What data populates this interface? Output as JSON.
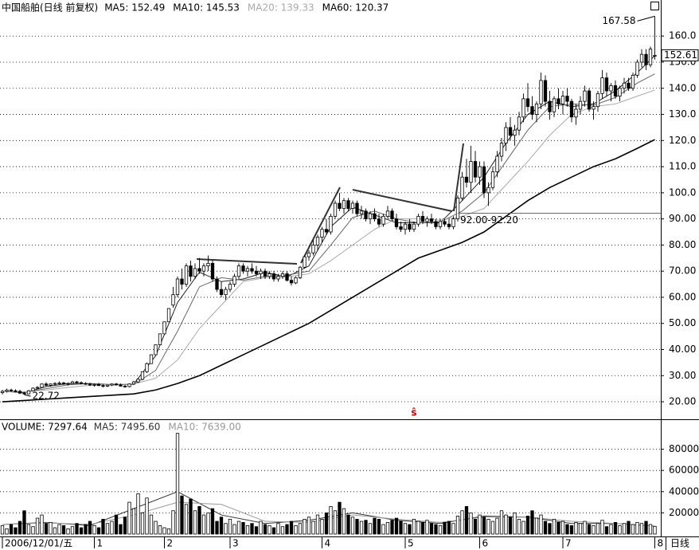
{
  "chart_data": {
    "type": "candlestick",
    "title": "中国船舶(日线 前复权)",
    "ylim": [
      13.6,
      173.8
    ],
    "yticks": [
      {
        "value": 20,
        "label": "20.00"
      },
      {
        "value": 30,
        "label": "30.00"
      },
      {
        "value": 40,
        "label": "40.00"
      },
      {
        "value": 50,
        "label": "50.00"
      },
      {
        "value": 60,
        "label": "60.00"
      },
      {
        "value": 70,
        "label": "70.00"
      },
      {
        "value": 80,
        "label": "80.00"
      },
      {
        "value": 90,
        "label": "90.00"
      },
      {
        "value": 100,
        "label": "100.0"
      },
      {
        "value": 110,
        "label": "110.0"
      },
      {
        "value": 120,
        "label": "120.0"
      },
      {
        "value": 130,
        "label": "130.0"
      },
      {
        "value": 140,
        "label": "140.0"
      },
      {
        "value": 150,
        "label": "150.0"
      },
      {
        "value": 160,
        "label": "160.0"
      }
    ],
    "grid": true,
    "candles": [
      [
        23.5,
        24.5,
        22.8,
        24
      ],
      [
        24,
        25,
        23.5,
        24.5
      ],
      [
        24.5,
        25,
        23.8,
        24.2
      ],
      [
        24.2,
        24.8,
        23.5,
        24
      ],
      [
        24,
        24.6,
        23,
        23.3
      ],
      [
        23.3,
        23.8,
        22.72,
        23
      ],
      [
        23,
        24.5,
        22.9,
        24.2
      ],
      [
        24.2,
        25.5,
        24,
        25.2
      ],
      [
        25.2,
        26,
        24.8,
        25.5
      ],
      [
        25.5,
        27,
        25.3,
        26.8
      ],
      [
        26.8,
        27.5,
        26,
        26.3
      ],
      [
        26.3,
        27,
        25.8,
        26.8
      ],
      [
        26.8,
        27.5,
        26.4,
        27
      ],
      [
        27,
        27.8,
        26.6,
        27.2
      ],
      [
        27.2,
        27.6,
        26.5,
        26.8
      ],
      [
        26.8,
        27.4,
        26.2,
        27
      ],
      [
        27,
        28,
        26.8,
        27.6
      ],
      [
        27.6,
        28,
        27,
        27.3
      ],
      [
        27.3,
        27.8,
        26.6,
        27
      ],
      [
        27,
        27.5,
        26.5,
        26.8
      ],
      [
        26.8,
        27.3,
        26,
        26.4
      ],
      [
        26.4,
        27,
        25.8,
        26.6
      ],
      [
        26.6,
        27.2,
        26,
        26.2
      ],
      [
        26.2,
        26.8,
        25.5,
        26
      ],
      [
        26,
        26.6,
        25.6,
        26.4
      ],
      [
        26.4,
        27,
        26,
        26.8
      ],
      [
        26.8,
        27.2,
        26.2,
        26.5
      ],
      [
        26.5,
        27,
        25.8,
        26
      ],
      [
        26,
        26.5,
        25.4,
        25.8
      ],
      [
        25.8,
        27,
        25.5,
        26.8
      ],
      [
        26.8,
        28,
        26.5,
        27.6
      ],
      [
        27.6,
        29,
        27.2,
        28.6
      ],
      [
        28.6,
        31.5,
        28.2,
        31.5
      ],
      [
        31.5,
        35,
        31,
        34.6
      ],
      [
        34.6,
        38,
        34.6,
        38
      ],
      [
        38,
        41.8,
        38,
        41.8
      ],
      [
        41.8,
        46,
        41.8,
        46
      ],
      [
        46,
        50.6,
        46,
        50.6
      ],
      [
        50.6,
        55.7,
        50.6,
        55.7
      ],
      [
        57,
        64,
        56,
        61
      ],
      [
        61,
        68,
        60,
        67
      ],
      [
        67,
        71,
        63,
        65
      ],
      [
        65,
        73,
        64,
        72
      ],
      [
        72,
        74,
        66,
        68
      ],
      [
        68,
        73,
        67,
        71
      ],
      [
        71,
        75,
        69,
        70
      ],
      [
        70,
        73,
        68,
        72
      ],
      [
        72,
        76,
        70,
        73
      ],
      [
        73,
        74,
        66,
        67
      ],
      [
        67,
        68,
        62,
        63
      ],
      [
        63,
        66,
        60,
        61
      ],
      [
        61,
        64,
        59,
        63
      ],
      [
        63,
        66,
        62,
        65
      ],
      [
        65,
        69,
        64,
        68
      ],
      [
        68,
        73,
        67,
        72
      ],
      [
        72,
        73,
        69,
        70
      ],
      [
        70,
        72,
        68,
        71
      ],
      [
        71,
        73,
        69,
        70
      ],
      [
        70,
        72,
        68,
        69
      ],
      [
        69,
        71,
        67,
        70
      ],
      [
        70,
        71,
        67,
        68
      ],
      [
        68,
        70,
        67,
        69
      ],
      [
        69,
        70,
        66,
        67
      ],
      [
        67,
        69,
        66,
        68
      ],
      [
        68,
        70,
        67,
        69
      ],
      [
        69,
        70,
        66,
        66.5
      ],
      [
        66.5,
        68,
        64.5,
        65.5
      ],
      [
        65.5,
        68,
        65,
        67.5
      ],
      [
        67.5,
        72,
        67,
        71.5
      ],
      [
        71.5,
        76,
        71,
        75.5
      ],
      [
        75.5,
        78,
        74,
        77
      ],
      [
        77,
        82,
        76,
        80
      ],
      [
        80,
        84,
        78,
        83
      ],
      [
        83,
        87,
        81,
        86
      ],
      [
        86,
        90,
        84,
        85
      ],
      [
        85,
        92,
        84,
        91
      ],
      [
        91,
        97,
        90,
        96
      ],
      [
        96,
        100,
        93,
        94
      ],
      [
        94,
        98,
        92,
        97
      ],
      [
        97,
        98,
        93,
        94
      ],
      [
        94,
        97,
        92,
        96
      ],
      [
        96,
        97,
        91,
        92
      ],
      [
        92,
        95,
        90,
        93
      ],
      [
        93,
        94,
        89,
        90
      ],
      [
        90,
        93,
        88,
        92
      ],
      [
        92,
        94,
        89,
        90
      ],
      [
        90,
        92,
        87,
        88
      ],
      [
        88,
        92,
        87,
        91
      ],
      [
        91,
        95,
        90,
        93
      ],
      [
        93,
        94,
        89,
        90
      ],
      [
        90,
        92,
        86,
        87
      ],
      [
        87,
        89,
        85,
        86
      ],
      [
        86,
        89,
        84,
        88
      ],
      [
        88,
        90,
        85,
        86
      ],
      [
        86,
        89,
        85,
        88
      ],
      [
        88,
        92,
        87,
        91
      ],
      [
        91,
        93,
        88,
        89
      ],
      [
        89,
        91,
        87,
        90
      ],
      [
        90,
        92,
        88,
        89
      ],
      [
        89,
        90,
        86,
        87
      ],
      [
        87,
        90,
        86,
        89
      ],
      [
        89,
        90,
        87,
        88
      ],
      [
        88,
        90,
        86,
        87
      ],
      [
        87,
        91,
        86,
        90
      ],
      [
        90,
        99,
        89,
        98
      ],
      [
        98,
        108,
        97,
        106
      ],
      [
        106,
        113,
        102,
        104
      ],
      [
        104,
        118,
        100,
        112
      ],
      [
        112,
        116,
        104,
        106
      ],
      [
        106,
        112,
        103,
        110
      ],
      [
        110,
        112,
        98,
        100
      ],
      [
        100,
        104,
        95,
        102
      ],
      [
        102,
        110,
        101,
        108
      ],
      [
        108,
        116,
        106,
        114
      ],
      [
        114,
        121,
        112,
        119
      ],
      [
        119,
        127,
        116,
        125
      ],
      [
        125,
        129,
        120,
        122
      ],
      [
        122,
        126,
        118,
        124
      ],
      [
        124,
        131,
        122,
        129
      ],
      [
        129,
        138,
        127,
        136
      ],
      [
        136,
        142,
        131,
        133
      ],
      [
        133,
        137,
        128,
        130
      ],
      [
        130,
        135,
        127,
        134
      ],
      [
        134,
        146,
        132,
        143
      ],
      [
        143,
        145,
        133,
        135
      ],
      [
        135,
        139,
        128,
        131
      ],
      [
        131,
        137,
        129,
        136
      ],
      [
        136,
        140,
        132,
        134
      ],
      [
        134,
        139,
        130,
        137
      ],
      [
        137,
        140,
        133,
        135
      ],
      [
        135,
        136,
        127,
        129
      ],
      [
        129,
        134,
        126,
        132
      ],
      [
        132,
        137,
        130,
        135
      ],
      [
        135,
        141,
        133,
        139
      ],
      [
        139,
        140,
        131,
        132
      ],
      [
        132,
        135,
        128,
        133
      ],
      [
        133,
        139,
        131,
        138
      ],
      [
        138,
        147,
        136,
        144
      ],
      [
        144,
        146,
        137,
        139
      ],
      [
        139,
        142,
        135,
        141
      ],
      [
        141,
        143,
        136,
        137
      ],
      [
        137,
        141,
        135,
        140
      ],
      [
        140,
        144,
        138,
        142
      ],
      [
        142,
        144,
        139,
        140
      ],
      [
        140,
        146,
        139,
        145
      ],
      [
        145,
        151,
        144,
        150
      ],
      [
        150,
        155,
        148,
        153
      ],
      [
        153,
        155,
        147,
        149
      ],
      [
        149,
        156,
        148,
        155
      ],
      [
        152.5,
        167.58,
        151,
        152.61
      ]
    ],
    "ma_x": [
      0,
      5,
      10,
      15,
      20,
      25,
      30,
      35,
      40,
      45,
      50,
      55,
      60,
      65,
      70,
      75,
      80,
      85,
      90,
      95,
      100,
      105,
      110,
      115,
      120,
      125,
      130,
      135,
      140,
      145,
      149
    ],
    "ma_series": [
      {
        "name": "MA5: 152.49",
        "color": "#222222",
        "width": 1,
        "values": [
          24,
          23.5,
          25.8,
          27,
          26.9,
          26.4,
          26.8,
          37.6,
          58,
          69.6,
          66,
          67,
          69.6,
          67.8,
          72,
          87,
          94.5,
          91.5,
          88.5,
          88.5,
          88.5,
          97,
          106,
          119,
          130,
          135,
          133,
          134,
          139,
          146,
          152.49
        ]
      },
      {
        "name": "MA10: 145.53",
        "color": "#666666",
        "width": 1,
        "values": [
          24,
          23.7,
          25,
          26.5,
          27,
          26.6,
          26.6,
          32,
          47,
          64,
          67.5,
          66.5,
          68,
          68.5,
          70,
          80,
          90.5,
          93,
          90,
          88.5,
          88.8,
          93,
          100,
          112,
          124,
          133,
          134,
          133.5,
          136.5,
          142,
          145.53
        ]
      },
      {
        "name": "MA20: 139.33",
        "color": "#aaaaaa",
        "width": 1,
        "values": [
          24,
          23.8,
          24.5,
          25.5,
          26.3,
          26.7,
          26.8,
          29,
          36,
          48,
          57,
          66,
          67.5,
          67.8,
          69,
          74,
          80,
          86,
          90,
          90,
          89.5,
          91,
          94,
          103,
          112,
          122,
          130,
          133,
          134,
          137,
          139.33
        ]
      },
      {
        "name": "MA60: 120.37",
        "color": "#000000",
        "width": 1.6,
        "values": [
          20,
          20.5,
          21,
          21.5,
          22,
          22.5,
          23,
          24.5,
          27,
          30,
          34,
          38,
          42,
          46,
          50,
          55,
          60,
          65,
          70,
          75,
          78,
          81,
          85,
          91,
          97,
          102,
          106,
          110,
          113,
          117,
          120.37
        ]
      }
    ],
    "last_price": 152.61,
    "high_annotation": 167.58,
    "low_annotation": 22.72,
    "hline": {
      "value": 92.2,
      "label": "92.00-92.20"
    },
    "signal_label": "ŝ",
    "xticks": [
      {
        "value": 0,
        "label": "2006/12/01/五"
      },
      {
        "value": 21,
        "label": "1"
      },
      {
        "value": 37,
        "label": "2"
      },
      {
        "value": 52,
        "label": "3"
      },
      {
        "value": 73,
        "label": "4"
      },
      {
        "value": 92,
        "label": "5"
      },
      {
        "value": 109,
        "label": "6"
      },
      {
        "value": 128,
        "label": "7"
      },
      {
        "value": 149,
        "label": "8"
      }
    ],
    "period": "日线",
    "volume": {
      "title": "VOLUME: 7297.64",
      "ylim": [
        0,
        100000
      ],
      "yticks": [
        20000,
        40000,
        60000,
        80000
      ],
      "values": [
        8000,
        5000,
        9000,
        6000,
        12000,
        22000,
        9000,
        7000,
        15000,
        18000,
        10000,
        11000,
        6000,
        9000,
        8000,
        5000,
        7000,
        10000,
        6000,
        9000,
        12000,
        8000,
        6000,
        14000,
        10000,
        12000,
        18000,
        9000,
        16000,
        30000,
        24000,
        38000,
        20000,
        34000,
        18000,
        12000,
        8000,
        6000,
        5000,
        22000,
        95000,
        36000,
        28000,
        33000,
        22000,
        26000,
        18000,
        20000,
        24000,
        12000,
        16000,
        10000,
        14000,
        9000,
        12000,
        11000,
        8000,
        10000,
        7000,
        12000,
        9000,
        8000,
        6000,
        10000,
        7000,
        9000,
        12000,
        8000,
        10000,
        14000,
        16000,
        12000,
        18000,
        14000,
        20000,
        26000,
        22000,
        30000,
        24000,
        18000,
        16000,
        14000,
        12000,
        13000,
        10000,
        15000,
        14000,
        9000,
        11000,
        13000,
        15000,
        12000,
        10000,
        9000,
        14000,
        12000,
        11000,
        13000,
        10000,
        9000,
        8000,
        11000,
        12000,
        10000,
        17000,
        22000,
        26000,
        20000,
        14000,
        18000,
        16000,
        14000,
        12000,
        15000,
        22000,
        18000,
        16000,
        20000,
        14000,
        12000,
        17000,
        22000,
        15000,
        18000,
        12000,
        10000,
        14000,
        11000,
        12000,
        9000,
        8000,
        11000,
        10000,
        12000,
        9000,
        8000,
        10000,
        13000,
        7000,
        9000,
        11000,
        8000,
        10000,
        12000,
        9000,
        11000,
        10000,
        12000,
        9000,
        7297.64
      ],
      "ma_x": [
        0,
        10,
        20,
        30,
        40,
        50,
        60,
        70,
        80,
        90,
        100,
        110,
        120,
        130,
        140,
        149
      ],
      "ma_series": [
        {
          "name": "MA5: 7495.60",
          "color": "#333333",
          "values": [
            9000,
            11000,
            8000,
            24000,
            40000,
            18000,
            10000,
            13000,
            20000,
            13000,
            10000,
            17000,
            16000,
            10000,
            10000,
            7495.6
          ]
        },
        {
          "name": "MA10: 7639.00",
          "color": "#999999",
          "values": [
            9000,
            10500,
            9000,
            18000,
            30000,
            28000,
            12000,
            11000,
            18000,
            14000,
            11000,
            16000,
            16000,
            12000,
            10000,
            7639
          ]
        }
      ]
    }
  }
}
